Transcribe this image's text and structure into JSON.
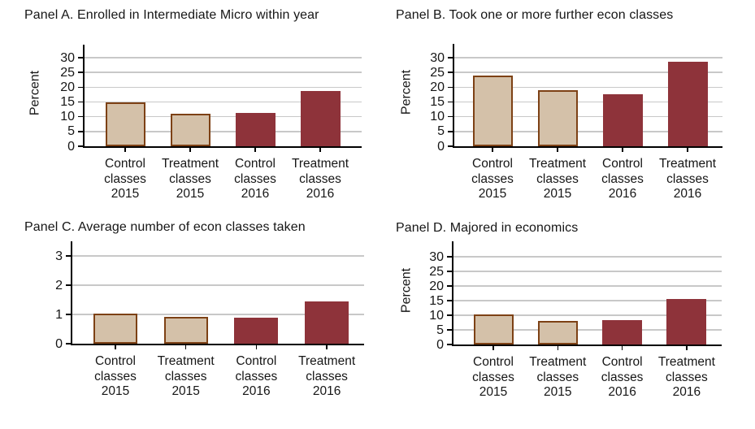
{
  "colors": {
    "tan_fill": "#d4c1a9",
    "tan_border": "#7d4115",
    "maroon_fill": "#8e333a",
    "gridline": "#c8c8c8",
    "axis": "#000000",
    "text": "#1a1a1a"
  },
  "chart_data": [
    {
      "panel": "A",
      "type": "bar",
      "title": "Panel A. Enrolled in Intermediate Micro within year",
      "ylabel": "Percent",
      "xlabel": "",
      "categories": [
        "Control classes 2015",
        "Treatment classes 2015",
        "Control classes 2016",
        "Treatment classes 2016"
      ],
      "values": [
        14.8,
        10.9,
        11.2,
        18.7
      ],
      "yticks": [
        0,
        5,
        10,
        15,
        20,
        25,
        30
      ],
      "ylim": [
        0,
        30
      ],
      "grid": true,
      "legend": null,
      "bar_colors": [
        "tan",
        "tan",
        "maroon",
        "maroon"
      ]
    },
    {
      "panel": "B",
      "type": "bar",
      "title": "Panel B. Took one or more further econ classes",
      "ylabel": "Percent",
      "xlabel": "",
      "categories": [
        "Control classes 2015",
        "Treatment classes 2015",
        "Control classes 2016",
        "Treatment classes 2016"
      ],
      "values": [
        23.9,
        19.1,
        17.7,
        28.6
      ],
      "yticks": [
        0,
        5,
        10,
        15,
        20,
        25,
        30
      ],
      "ylim": [
        0,
        30
      ],
      "grid": true,
      "legend": null,
      "bar_colors": [
        "tan",
        "tan",
        "maroon",
        "maroon"
      ]
    },
    {
      "panel": "C",
      "type": "bar",
      "title": "Panel C. Average number of econ classes taken",
      "ylabel": "",
      "xlabel": "",
      "categories": [
        "Control classes 2015",
        "Treatment classes 2015",
        "Control classes 2016",
        "Treatment classes 2016"
      ],
      "values": [
        1.03,
        0.92,
        0.9,
        1.45
      ],
      "yticks": [
        0,
        1,
        2,
        3
      ],
      "ylim": [
        0,
        3
      ],
      "grid": true,
      "legend": null,
      "bar_colors": [
        "tan",
        "tan",
        "maroon",
        "maroon"
      ]
    },
    {
      "panel": "D",
      "type": "bar",
      "title": "Panel D. Majored in economics",
      "ylabel": "Percent",
      "xlabel": "",
      "categories": [
        "Control classes 2015",
        "Treatment classes 2015",
        "Control classes 2016",
        "Treatment classes 2016"
      ],
      "values": [
        10.2,
        8.1,
        8.4,
        15.6
      ],
      "yticks": [
        0,
        5,
        10,
        15,
        20,
        25,
        30
      ],
      "ylim": [
        0,
        30
      ],
      "grid": true,
      "legend": null,
      "bar_colors": [
        "tan",
        "tan",
        "maroon",
        "maroon"
      ]
    }
  ]
}
